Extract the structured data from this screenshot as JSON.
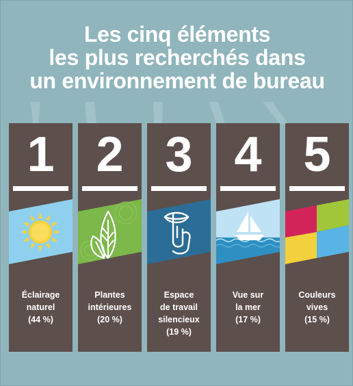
{
  "title": {
    "line1": "Les cinq éléments",
    "line2": "les plus recherchés dans",
    "line3": "un environnement de bureau"
  },
  "cards": [
    {
      "number": "1",
      "icon": "sun-icon",
      "label_lines": [
        "Éclairage",
        "naturel",
        "(44 %)"
      ],
      "colors": [
        "#8fd0ee",
        "#f7d23c"
      ]
    },
    {
      "number": "2",
      "icon": "leaf-icon",
      "label_lines": [
        "Plantes",
        "intérieures",
        "(20 %)"
      ],
      "colors": [
        "#7cb84a"
      ]
    },
    {
      "number": "3",
      "icon": "shush-icon",
      "label_lines": [
        "Espace",
        "de travail",
        "silencieux",
        "(19 %)"
      ],
      "colors": [
        "#2b6d96"
      ]
    },
    {
      "number": "4",
      "icon": "sailboat-icon",
      "label_lines": [
        "Vue sur",
        "la mer",
        "(17 %)"
      ],
      "colors": [
        "#bfe2f4",
        "#2d8fc2"
      ]
    },
    {
      "number": "5",
      "icon": "color-blocks-icon",
      "label_lines": [
        "Couleurs",
        "vives",
        "(15 %)"
      ],
      "colors": [
        "#d3245a",
        "#a2c63a",
        "#f2d13c",
        "#58b4e4"
      ]
    }
  ]
}
